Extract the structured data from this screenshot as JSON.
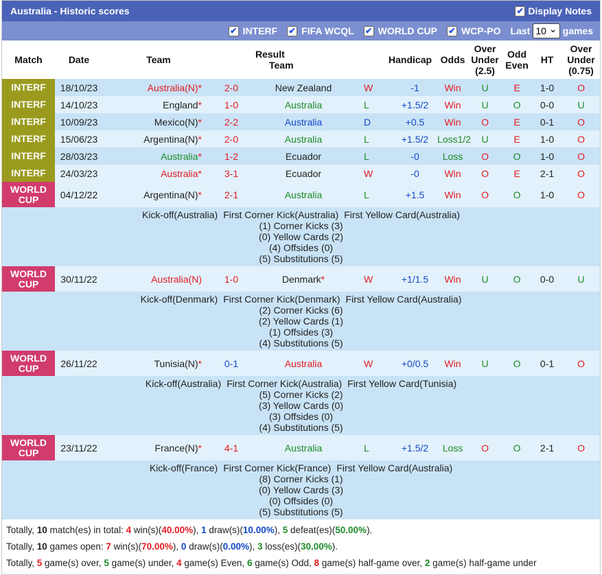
{
  "header": {
    "title": "Australia - Historic scores",
    "display_notes_label": "Display Notes"
  },
  "filters": {
    "items": [
      {
        "label": "INTERF",
        "checked": true
      },
      {
        "label": "FIFA WCQL",
        "checked": true
      },
      {
        "label": "WORLD CUP",
        "checked": true
      },
      {
        "label": "WCP-PO",
        "checked": true
      }
    ],
    "last_label": "Last",
    "last_value": "10",
    "games_label": "games"
  },
  "columns": {
    "match": "Match",
    "date": "Date",
    "team1": "Team",
    "result": "Result",
    "team2": "Team",
    "handicap": "Handicap",
    "odds": "Odds",
    "over_under_1": "Over",
    "over_under_2": "Under",
    "over_under_3": "(2.5)",
    "odd_even_1": "Odd",
    "odd_even_2": "Even",
    "ht": "HT",
    "ou2_1": "Over",
    "ou2_2": "Under",
    "ou2_3": "(0.75)"
  },
  "colors": {
    "interf": "#9a9b1e",
    "world_cup": "#d13c6d",
    "title_bar": "#4a63b8",
    "filter_bar": "#7b8fd0",
    "win": "#e31b23",
    "draw": "#1448c8",
    "loss": "#1e8c2a"
  },
  "matches": [
    {
      "comp": "INTERF",
      "date": "18/10/23",
      "home": "Australia(N)",
      "home_star": "*",
      "home_color": "red",
      "score": "2-0",
      "score_color": "red",
      "away": "New Zealand",
      "away_star": "",
      "away_color": "dark",
      "wl": "W",
      "wl_color": "red",
      "handicap": "-1",
      "odds": "Win",
      "odds_color": "red",
      "ou": "U",
      "ou_color": "green",
      "oe": "E",
      "oe_color": "red",
      "ht": "1-0",
      "ou2": "O",
      "ou2_color": "red"
    },
    {
      "comp": "INTERF",
      "date": "14/10/23",
      "home": "England",
      "home_star": "*",
      "home_color": "dark",
      "score": "1-0",
      "score_color": "red",
      "away": "Australia",
      "away_star": "",
      "away_color": "green",
      "wl": "L",
      "wl_color": "green",
      "handicap": "+1.5/2",
      "odds": "Win",
      "odds_color": "red",
      "ou": "U",
      "ou_color": "green",
      "oe": "O",
      "oe_color": "green",
      "ht": "0-0",
      "ou2": "U",
      "ou2_color": "green"
    },
    {
      "comp": "INTERF",
      "date": "10/09/23",
      "home": "Mexico(N)",
      "home_star": "*",
      "home_color": "dark",
      "score": "2-2",
      "score_color": "red",
      "away": "Australia",
      "away_star": "",
      "away_color": "blue",
      "wl": "D",
      "wl_color": "blue",
      "handicap": "+0.5",
      "odds": "Win",
      "odds_color": "red",
      "ou": "O",
      "ou_color": "red",
      "oe": "E",
      "oe_color": "red",
      "ht": "0-1",
      "ou2": "O",
      "ou2_color": "red"
    },
    {
      "comp": "INTERF",
      "date": "15/06/23",
      "home": "Argentina(N)",
      "home_star": "*",
      "home_color": "dark",
      "score": "2-0",
      "score_color": "red",
      "away": "Australia",
      "away_star": "",
      "away_color": "green",
      "wl": "L",
      "wl_color": "green",
      "handicap": "+1.5/2",
      "odds": "Loss1/2",
      "odds_color": "green",
      "ou": "U",
      "ou_color": "green",
      "oe": "E",
      "oe_color": "red",
      "ht": "1-0",
      "ou2": "O",
      "ou2_color": "red"
    },
    {
      "comp": "INTERF",
      "date": "28/03/23",
      "home": "Australia",
      "home_star": "*",
      "home_color": "green",
      "score": "1-2",
      "score_color": "red",
      "away": "Ecuador",
      "away_star": "",
      "away_color": "dark",
      "wl": "L",
      "wl_color": "green",
      "handicap": "-0",
      "odds": "Loss",
      "odds_color": "green",
      "ou": "O",
      "ou_color": "red",
      "oe": "O",
      "oe_color": "green",
      "ht": "1-0",
      "ou2": "O",
      "ou2_color": "red"
    },
    {
      "comp": "INTERF",
      "date": "24/03/23",
      "home": "Australia",
      "home_star": "*",
      "home_color": "red",
      "score": "3-1",
      "score_color": "red",
      "away": "Ecuador",
      "away_star": "",
      "away_color": "dark",
      "wl": "W",
      "wl_color": "red",
      "handicap": "-0",
      "odds": "Win",
      "odds_color": "red",
      "ou": "O",
      "ou_color": "red",
      "oe": "E",
      "oe_color": "red",
      "ht": "2-1",
      "ou2": "O",
      "ou2_color": "red"
    },
    {
      "comp": "WORLD CUP",
      "date": "04/12/22",
      "home": "Argentina(N)",
      "home_star": "*",
      "home_color": "dark",
      "score": "2-1",
      "score_color": "red",
      "away": "Australia",
      "away_star": "",
      "away_color": "green",
      "wl": "L",
      "wl_color": "green",
      "handicap": "+1.5",
      "odds": "Win",
      "odds_color": "red",
      "ou": "O",
      "ou_color": "red",
      "oe": "O",
      "oe_color": "green",
      "ht": "1-0",
      "ou2": "O",
      "ou2_color": "red",
      "detail": {
        "kickoff": "Kick-off(Australia)",
        "first_corner": "First Corner Kick(Australia)",
        "first_yellow": "First Yellow Card(Australia)",
        "corners": "(1) Corner Kicks (3)",
        "yellows": "(0) Yellow Cards (2)",
        "offsides": "(4) Offsides (0)",
        "subs": "(5) Substitutions (5)"
      }
    },
    {
      "comp": "WORLD CUP",
      "date": "30/11/22",
      "home": "Australia(N)",
      "home_star": "",
      "home_color": "red",
      "score": "1-0",
      "score_color": "red",
      "away": "Denmark",
      "away_star": "*",
      "away_color": "dark",
      "wl": "W",
      "wl_color": "red",
      "handicap": "+1/1.5",
      "odds": "Win",
      "odds_color": "red",
      "ou": "U",
      "ou_color": "green",
      "oe": "O",
      "oe_color": "green",
      "ht": "0-0",
      "ou2": "U",
      "ou2_color": "green",
      "detail": {
        "kickoff": "Kick-off(Denmark)",
        "first_corner": "First Corner Kick(Denmark)",
        "first_yellow": "First Yellow Card(Australia)",
        "corners": "(2) Corner Kicks (6)",
        "yellows": "(2) Yellow Cards (1)",
        "offsides": "(1) Offsides (3)",
        "subs": "(4) Substitutions (5)"
      }
    },
    {
      "comp": "WORLD CUP",
      "date": "26/11/22",
      "home": "Tunisia(N)",
      "home_star": "*",
      "home_color": "dark",
      "score": "0-1",
      "score_color": "blue",
      "away": "Australia",
      "away_star": "",
      "away_color": "red",
      "wl": "W",
      "wl_color": "red",
      "handicap": "+0/0.5",
      "odds": "Win",
      "odds_color": "red",
      "ou": "U",
      "ou_color": "green",
      "oe": "O",
      "oe_color": "green",
      "ht": "0-1",
      "ou2": "O",
      "ou2_color": "red",
      "detail": {
        "kickoff": "Kick-off(Australia)",
        "first_corner": "First Corner Kick(Australia)",
        "first_yellow": "First Yellow Card(Tunisia)",
        "corners": "(5) Corner Kicks (2)",
        "yellows": "(3) Yellow Cards (0)",
        "offsides": "(3) Offsides (0)",
        "subs": "(4) Substitutions (5)"
      }
    },
    {
      "comp": "WORLD CUP",
      "date": "23/11/22",
      "home": "France(N)",
      "home_star": "*",
      "home_color": "dark",
      "score": "4-1",
      "score_color": "red",
      "away": "Australia",
      "away_star": "",
      "away_color": "green",
      "wl": "L",
      "wl_color": "green",
      "handicap": "+1.5/2",
      "odds": "Loss",
      "odds_color": "green",
      "ou": "O",
      "ou_color": "red",
      "oe": "O",
      "oe_color": "green",
      "ht": "2-1",
      "ou2": "O",
      "ou2_color": "red",
      "detail": {
        "kickoff": "Kick-off(France)",
        "first_corner": "First Corner Kick(France)",
        "first_yellow": "First Yellow Card(Australia)",
        "corners": "(8) Corner Kicks (1)",
        "yellows": "(0) Yellow Cards (3)",
        "offsides": "(0) Offsides (0)",
        "subs": "(5) Substitutions (5)"
      }
    }
  ],
  "summary": {
    "line1": [
      {
        "t": "Totally, ",
        "c": ""
      },
      {
        "t": "10",
        "c": "b"
      },
      {
        "t": " match(es) in total: ",
        "c": ""
      },
      {
        "t": "4",
        "c": "b red"
      },
      {
        "t": " win(s)(",
        "c": ""
      },
      {
        "t": "40.00%",
        "c": "b red"
      },
      {
        "t": "), ",
        "c": ""
      },
      {
        "t": "1",
        "c": "b blue"
      },
      {
        "t": " draw(s)(",
        "c": ""
      },
      {
        "t": "10.00%",
        "c": "b blue"
      },
      {
        "t": "), ",
        "c": ""
      },
      {
        "t": "5",
        "c": "b green"
      },
      {
        "t": " defeat(es)(",
        "c": ""
      },
      {
        "t": "50.00%",
        "c": "b green"
      },
      {
        "t": ").",
        "c": ""
      }
    ],
    "line2": [
      {
        "t": "Totally, ",
        "c": ""
      },
      {
        "t": "10",
        "c": "b"
      },
      {
        "t": " games open: ",
        "c": ""
      },
      {
        "t": "7",
        "c": "b red"
      },
      {
        "t": " win(s)(",
        "c": ""
      },
      {
        "t": "70.00%",
        "c": "b red"
      },
      {
        "t": "), ",
        "c": ""
      },
      {
        "t": "0",
        "c": "b blue"
      },
      {
        "t": " draw(s)(",
        "c": ""
      },
      {
        "t": "0.00%",
        "c": "b blue"
      },
      {
        "t": "), ",
        "c": ""
      },
      {
        "t": "3",
        "c": "b green"
      },
      {
        "t": " loss(es)(",
        "c": ""
      },
      {
        "t": "30.00%",
        "c": "b green"
      },
      {
        "t": ").",
        "c": ""
      }
    ],
    "line3": [
      {
        "t": "Totally, ",
        "c": ""
      },
      {
        "t": "5",
        "c": "b red"
      },
      {
        "t": " game(s) over, ",
        "c": ""
      },
      {
        "t": "5",
        "c": "b green"
      },
      {
        "t": " game(s) under, ",
        "c": ""
      },
      {
        "t": "4",
        "c": "b red"
      },
      {
        "t": " game(s) Even, ",
        "c": ""
      },
      {
        "t": "6",
        "c": "b green"
      },
      {
        "t": " game(s) Odd, ",
        "c": ""
      },
      {
        "t": "8",
        "c": "b red"
      },
      {
        "t": " game(s) half-game over, ",
        "c": ""
      },
      {
        "t": "2",
        "c": "b green"
      },
      {
        "t": " game(s) half-game under",
        "c": ""
      }
    ]
  }
}
